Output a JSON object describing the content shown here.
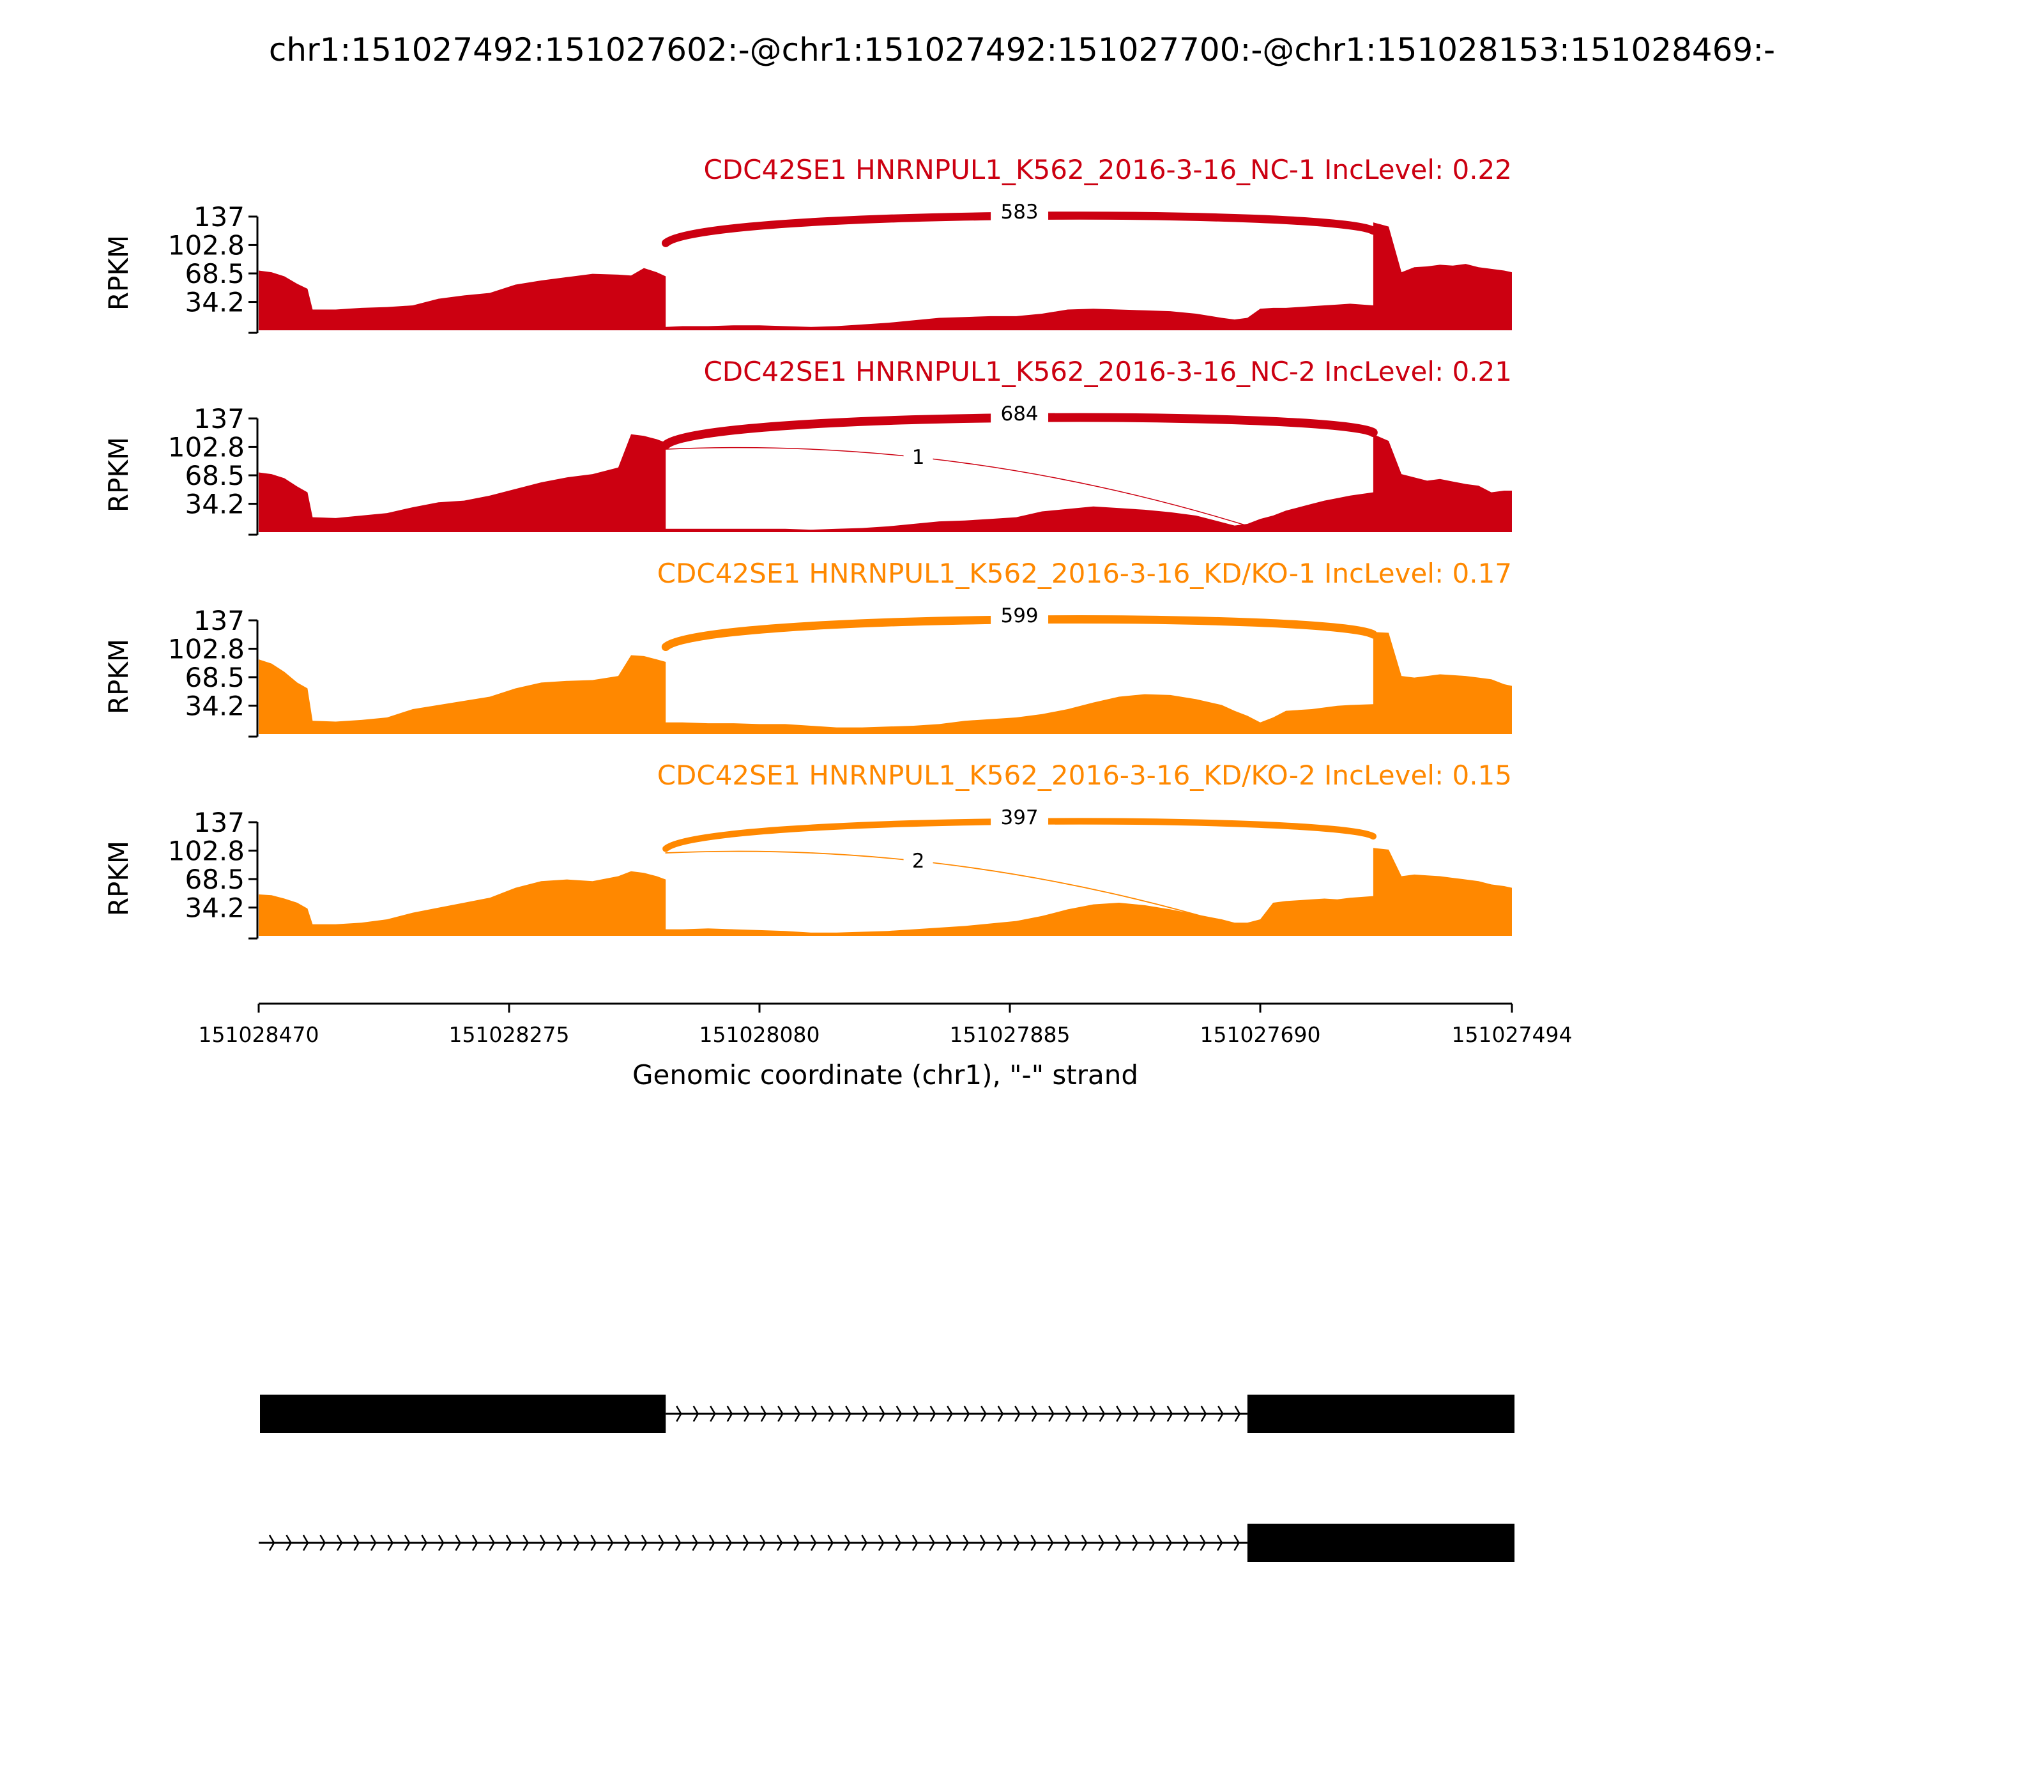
{
  "chart_data": {
    "type": "area",
    "title": "chr1:151027492:151027602:-@chr1:151027492:151027700:-@chr1:151028153:151028469:-",
    "xlabel": "Genomic coordinate (chr1), \"-\" strand",
    "ylabel": "RPKM",
    "ylim": [
      0,
      137
    ],
    "yticks": [
      "137",
      "102.8",
      "68.5",
      "34.2"
    ],
    "xlim": [
      151028470,
      151027494
    ],
    "xticks": [
      "151028470",
      "151028275",
      "151028080",
      "151027885",
      "151027690",
      "151027494"
    ],
    "grid": false,
    "tracks": [
      {
        "name": "CDC42SE1 HNRNPUL1_K562_2016-3-16_NC-1 IncLevel: 0.22",
        "color": "#cc0011",
        "x": [
          151028470,
          151028460,
          151028450,
          151028440,
          151028432,
          151028428,
          151028410,
          151028390,
          151028370,
          151028350,
          151028330,
          151028310,
          151028290,
          151028270,
          151028250,
          151028230,
          151028210,
          151028190,
          151028180,
          151028170,
          151028160,
          151028153,
          151028153,
          151028140,
          151028120,
          151028100,
          151028080,
          151028060,
          151028040,
          151028020,
          151028000,
          151027980,
          151027960,
          151027940,
          151027920,
          151027900,
          151027880,
          151027860,
          151027840,
          151027820,
          151027800,
          151027780,
          151027760,
          151027740,
          151027720,
          151027710,
          151027700,
          151027690,
          151027680,
          151027670,
          151027660,
          151027650,
          151027640,
          151027630,
          151027620,
          151027602,
          151027602,
          151027590,
          151027580,
          151027570,
          151027560,
          151027550,
          151027540,
          151027530,
          151027520,
          151027510,
          151027500,
          151027494
        ],
        "y": [
          72,
          70,
          65,
          56,
          50,
          25,
          25,
          27,
          28,
          30,
          38,
          42,
          45,
          55,
          60,
          64,
          68,
          67,
          66,
          75,
          70,
          65,
          4,
          5,
          5,
          6,
          6,
          5,
          4,
          5,
          7,
          9,
          12,
          15,
          16,
          17,
          17,
          20,
          25,
          26,
          25,
          24,
          23,
          20,
          15,
          13,
          15,
          26,
          27,
          27,
          28,
          29,
          30,
          31,
          32,
          30,
          130,
          125,
          70,
          76,
          77,
          79,
          78,
          80,
          76,
          74,
          72,
          70
        ]
      },
      {
        "name": "CDC42SE1 HNRNPUL1_K562_2016-3-16_NC-2 IncLevel: 0.21",
        "color": "#cc0011",
        "x": [
          151028470,
          151028460,
          151028450,
          151028440,
          151028432,
          151028428,
          151028410,
          151028390,
          151028370,
          151028350,
          151028330,
          151028310,
          151028290,
          151028270,
          151028250,
          151028230,
          151028210,
          151028190,
          151028180,
          151028170,
          151028160,
          151028153,
          151028153,
          151028140,
          151028120,
          151028100,
          151028080,
          151028060,
          151028040,
          151028020,
          151028000,
          151027980,
          151027960,
          151027940,
          151027920,
          151027900,
          151027880,
          151027860,
          151027840,
          151027820,
          151027800,
          151027780,
          151027760,
          151027740,
          151027720,
          151027710,
          151027700,
          151027690,
          151027680,
          151027670,
          151027660,
          151027650,
          151027640,
          151027630,
          151027620,
          151027602,
          151027602,
          151027590,
          151027580,
          151027570,
          151027560,
          151027550,
          151027540,
          151027530,
          151027520,
          151027510,
          151027500,
          151027494
        ],
        "y": [
          72,
          70,
          65,
          55,
          48,
          18,
          17,
          20,
          23,
          30,
          36,
          38,
          44,
          52,
          60,
          66,
          70,
          78,
          118,
          116,
          112,
          108,
          4,
          4,
          4,
          4,
          4,
          4,
          3,
          4,
          5,
          7,
          10,
          13,
          14,
          16,
          18,
          25,
          28,
          31,
          29,
          27,
          24,
          20,
          12,
          8,
          10,
          16,
          20,
          26,
          30,
          34,
          38,
          41,
          44,
          48,
          118,
          110,
          70,
          66,
          62,
          64,
          61,
          58,
          56,
          48,
          50,
          50
        ]
      },
      {
        "name": "CDC42SE1 HNRNPUL1_K562_2016-3-16_KD/KO-1 IncLevel: 0.17",
        "color": "#ff8800",
        "x": [
          151028470,
          151028460,
          151028450,
          151028440,
          151028432,
          151028428,
          151028410,
          151028390,
          151028370,
          151028350,
          151028330,
          151028310,
          151028290,
          151028270,
          151028250,
          151028230,
          151028210,
          151028190,
          151028180,
          151028170,
          151028160,
          151028153,
          151028153,
          151028140,
          151028120,
          151028100,
          151028080,
          151028060,
          151028040,
          151028020,
          151028000,
          151027980,
          151027960,
          151027940,
          151027920,
          151027900,
          151027880,
          151027860,
          151027840,
          151027820,
          151027800,
          151027780,
          151027760,
          151027740,
          151027720,
          151027710,
          151027700,
          151027690,
          151027680,
          151027670,
          151027660,
          151027650,
          151027640,
          151027630,
          151027620,
          151027602,
          151027602,
          151027590,
          151027580,
          151027570,
          151027560,
          151027550,
          151027540,
          151027530,
          151027520,
          151027510,
          151027500,
          151027494
        ],
        "y": [
          90,
          85,
          75,
          62,
          55,
          16,
          15,
          17,
          20,
          30,
          35,
          40,
          45,
          55,
          62,
          64,
          65,
          70,
          95,
          94,
          90,
          87,
          14,
          14,
          13,
          13,
          12,
          12,
          10,
          8,
          8,
          9,
          10,
          12,
          16,
          18,
          20,
          24,
          30,
          38,
          45,
          48,
          47,
          42,
          35,
          28,
          22,
          14,
          20,
          28,
          29,
          30,
          32,
          34,
          35,
          36,
          123,
          122,
          70,
          68,
          70,
          72,
          71,
          70,
          68,
          66,
          60,
          58
        ]
      },
      {
        "name": "CDC42SE1 HNRNPUL1_K562_2016-3-16_KD/KO-2 IncLevel: 0.15",
        "color": "#ff8800",
        "x": [
          151028470,
          151028460,
          151028450,
          151028440,
          151028432,
          151028428,
          151028410,
          151028390,
          151028370,
          151028350,
          151028330,
          151028310,
          151028290,
          151028270,
          151028250,
          151028230,
          151028210,
          151028190,
          151028180,
          151028170,
          151028160,
          151028153,
          151028153,
          151028140,
          151028120,
          151028100,
          151028080,
          151028060,
          151028040,
          151028020,
          151028000,
          151027980,
          151027960,
          151027940,
          151027920,
          151027900,
          151027880,
          151027860,
          151027840,
          151027820,
          151027800,
          151027780,
          151027760,
          151027740,
          151027720,
          151027710,
          151027700,
          151027690,
          151027680,
          151027670,
          151027660,
          151027650,
          151027640,
          151027630,
          151027620,
          151027602,
          151027602,
          151027590,
          151027580,
          151027570,
          151027560,
          151027550,
          151027540,
          151027530,
          151027520,
          151027510,
          151027500,
          151027494
        ],
        "y": [
          50,
          49,
          45,
          40,
          33,
          14,
          14,
          16,
          20,
          28,
          34,
          40,
          46,
          58,
          66,
          68,
          66,
          72,
          78,
          76,
          72,
          68,
          8,
          8,
          9,
          8,
          7,
          6,
          4,
          4,
          5,
          6,
          8,
          10,
          12,
          15,
          18,
          24,
          32,
          38,
          40,
          37,
          32,
          26,
          20,
          16,
          16,
          20,
          40,
          42,
          43,
          44,
          45,
          44,
          46,
          48,
          106,
          104,
          72,
          74,
          73,
          72,
          70,
          68,
          66,
          62,
          60,
          58
        ]
      }
    ],
    "junctions": [
      [
        {
          "from": 151028153,
          "to": 151027602,
          "count": "583",
          "thickness": 4.2
        }
      ],
      [
        {
          "from": 151028153,
          "to": 151027602,
          "count": "684",
          "thickness": 4.6
        },
        {
          "from": 151028153,
          "to": 151027700,
          "count": "1",
          "thickness": 0.5
        }
      ],
      [
        {
          "from": 151028153,
          "to": 151027602,
          "count": "599",
          "thickness": 4.3
        }
      ],
      [
        {
          "from": 151028153,
          "to": 151027602,
          "count": "397",
          "thickness": 3.4
        },
        {
          "from": 151028153,
          "to": 151027700,
          "count": "2",
          "thickness": 0.6
        }
      ]
    ],
    "isoforms": [
      {
        "exons": [
          [
            151028469,
            151028153
          ],
          [
            151027700,
            151027492
          ]
        ],
        "intron": [
          151028153,
          151027700
        ]
      },
      {
        "exons": [
          [
            151027700,
            151027492
          ]
        ],
        "intron": [
          151028470,
          151027700
        ]
      }
    ]
  }
}
